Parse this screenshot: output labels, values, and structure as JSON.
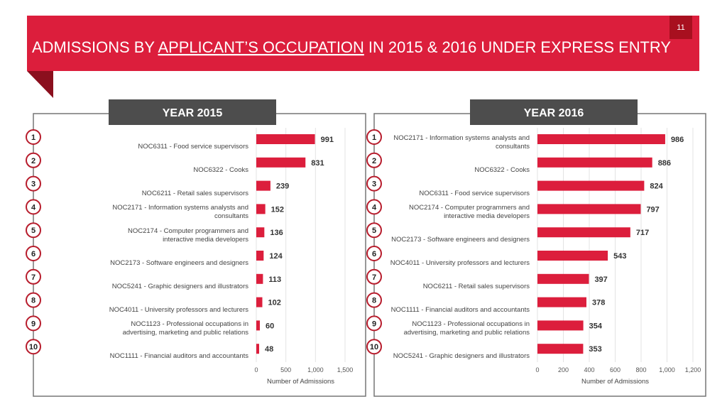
{
  "header": {
    "title_before": "ADMISSIONS BY ",
    "title_underlined": "APPLICANT’S OCCUPATION",
    "title_after": " IN 2015 & 2016 UNDER EXPRESS ENTRY",
    "page_number": 11
  },
  "ranks": [
    1,
    2,
    3,
    4,
    5,
    6,
    7,
    8,
    9,
    10
  ],
  "chart_data": [
    {
      "type": "bar",
      "orientation": "horizontal",
      "title": "YEAR 2015",
      "categories": [
        "NOC6311 - Food service supervisors",
        "NOC6322 - Cooks",
        "NOC6211 - Retail sales supervisors",
        "NOC2171 - Information systems analysts and consultants",
        "NOC2174 - Computer programmers and interactive media developers",
        "NOC2173 - Software engineers and designers",
        "NOC5241 - Graphic designers and illustrators",
        "NOC4011 - University professors and lecturers",
        "NOC1123 - Professional occupations in advertising, marketing and public relations",
        "NOC1111 - Financial auditors and accountants"
      ],
      "values": [
        991,
        831,
        239,
        152,
        136,
        124,
        113,
        102,
        60,
        48
      ],
      "color": "#dc1e3c",
      "xlim": [
        0,
        1500
      ],
      "xticks": [
        0,
        500,
        {
          "value": 1000,
          "label": "1,000"
        },
        {
          "value": 1500,
          "label": "1,500"
        }
      ],
      "xlabel": "Number of Admissions",
      "grid": true
    },
    {
      "type": "bar",
      "orientation": "horizontal",
      "title": "YEAR 2016",
      "categories": [
        "NOC2171 - Information systems analysts and consultants",
        "NOC6322 - Cooks",
        "NOC6311 - Food service supervisors",
        "NOC2174 - Computer programmers and interactive media developers",
        "NOC2173 - Software engineers and designers",
        "NOC4011 - University professors and lecturers",
        "NOC6211 - Retail sales supervisors",
        "NOC1111 - Financial auditors and accountants",
        "NOC1123 - Professional occupations in advertising, marketing and public relations",
        "NOC5241 - Graphic designers and illustrators"
      ],
      "values": [
        986,
        886,
        824,
        797,
        717,
        543,
        397,
        378,
        354,
        353
      ],
      "color": "#dc1e3c",
      "xlim": [
        0,
        1200
      ],
      "xticks": [
        0,
        200,
        400,
        600,
        800,
        {
          "value": 1000,
          "label": "1,000"
        },
        {
          "value": 1200,
          "label": "1,200"
        }
      ],
      "xlabel": "Number of Admissions",
      "grid": true
    }
  ]
}
